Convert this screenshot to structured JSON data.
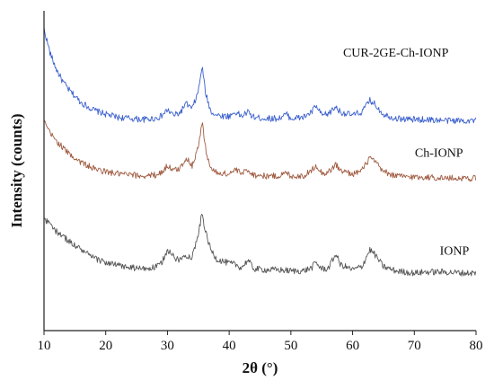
{
  "chart_data": {
    "type": "line",
    "xlabel": "2θ (°)",
    "ylabel": "Intensity (counts)",
    "xlim": [
      10,
      80
    ],
    "xticks": [
      10,
      20,
      30,
      40,
      50,
      60,
      70,
      80
    ],
    "ylim": [
      0,
      300
    ],
    "grid": false,
    "series": [
      {
        "name": "CUR-2GE-Ch-IONP",
        "color": "#3a5fcd",
        "label_at": [
          67,
          257
        ],
        "points": [
          [
            10,
            283
          ],
          [
            11,
            260
          ],
          [
            12,
            245
          ],
          [
            13,
            234
          ],
          [
            14,
            226
          ],
          [
            16,
            214
          ],
          [
            18,
            207
          ],
          [
            20,
            203
          ],
          [
            22,
            200
          ],
          [
            24,
            199
          ],
          [
            26,
            198
          ],
          [
            28,
            199
          ],
          [
            29,
            201
          ],
          [
            30,
            207
          ],
          [
            31,
            202
          ],
          [
            32,
            204
          ],
          [
            33,
            213
          ],
          [
            34,
            208
          ],
          [
            35,
            224
          ],
          [
            35.6,
            248
          ],
          [
            36.2,
            222
          ],
          [
            37,
            206
          ],
          [
            38,
            202
          ],
          [
            40,
            201
          ],
          [
            41,
            205
          ],
          [
            42,
            201
          ],
          [
            43,
            205
          ],
          [
            44,
            200
          ],
          [
            46,
            199
          ],
          [
            48,
            199
          ],
          [
            49.3,
            203
          ],
          [
            50,
            199
          ],
          [
            52,
            200
          ],
          [
            53.4,
            205
          ],
          [
            54,
            211
          ],
          [
            55,
            202
          ],
          [
            56,
            203
          ],
          [
            57.3,
            210
          ],
          [
            58,
            205
          ],
          [
            60,
            202
          ],
          [
            61.5,
            205
          ],
          [
            62.8,
            216
          ],
          [
            63.5,
            213
          ],
          [
            65,
            203
          ],
          [
            67,
            199
          ],
          [
            70,
            198
          ],
          [
            72,
            198
          ],
          [
            75,
            197
          ],
          [
            78,
            197
          ],
          [
            80,
            197
          ]
        ]
      },
      {
        "name": "Ch-IONP",
        "color": "#a05c42",
        "label_at": [
          74,
          163
        ],
        "points": [
          [
            10,
            196
          ],
          [
            11,
            185
          ],
          [
            12,
            178
          ],
          [
            13,
            172
          ],
          [
            14,
            166
          ],
          [
            16,
            158
          ],
          [
            18,
            152
          ],
          [
            20,
            149
          ],
          [
            22,
            147
          ],
          [
            24,
            146
          ],
          [
            26,
            145
          ],
          [
            28,
            146
          ],
          [
            29,
            148
          ],
          [
            30,
            155
          ],
          [
            31,
            150
          ],
          [
            32,
            152
          ],
          [
            33,
            162
          ],
          [
            34,
            155
          ],
          [
            35,
            172
          ],
          [
            35.6,
            196
          ],
          [
            36.2,
            170
          ],
          [
            37,
            152
          ],
          [
            38,
            148
          ],
          [
            40,
            147
          ],
          [
            41,
            151
          ],
          [
            42,
            147
          ],
          [
            43,
            151
          ],
          [
            44,
            146
          ],
          [
            46,
            145
          ],
          [
            48,
            145
          ],
          [
            49.3,
            148
          ],
          [
            50,
            145
          ],
          [
            52,
            145
          ],
          [
            53.4,
            150
          ],
          [
            54,
            156
          ],
          [
            55,
            148
          ],
          [
            56,
            148
          ],
          [
            57.3,
            156
          ],
          [
            58,
            150
          ],
          [
            60,
            147
          ],
          [
            61.5,
            150
          ],
          [
            62.8,
            162
          ],
          [
            63.5,
            159
          ],
          [
            65,
            149
          ],
          [
            67,
            145
          ],
          [
            70,
            144
          ],
          [
            72,
            144
          ],
          [
            75,
            143
          ],
          [
            78,
            143
          ],
          [
            80,
            143
          ]
        ]
      },
      {
        "name": "IONP",
        "color": "#555555",
        "label_at": [
          76.5,
          71
        ],
        "points": [
          [
            10,
            105
          ],
          [
            11,
            99
          ],
          [
            12,
            93
          ],
          [
            13,
            89
          ],
          [
            14,
            84
          ],
          [
            16,
            76
          ],
          [
            18,
            68
          ],
          [
            20,
            64
          ],
          [
            22,
            61
          ],
          [
            24,
            59
          ],
          [
            26,
            58
          ],
          [
            28,
            59
          ],
          [
            29,
            63
          ],
          [
            30,
            76
          ],
          [
            31,
            69
          ],
          [
            32,
            66
          ],
          [
            33,
            71
          ],
          [
            34,
            69
          ],
          [
            35,
            90
          ],
          [
            35.6,
            110
          ],
          [
            36.2,
            92
          ],
          [
            37,
            76
          ],
          [
            38,
            67
          ],
          [
            40,
            63
          ],
          [
            41,
            62
          ],
          [
            42,
            59
          ],
          [
            43,
            66
          ],
          [
            44,
            58
          ],
          [
            46,
            57
          ],
          [
            48,
            57
          ],
          [
            50,
            56
          ],
          [
            52,
            56
          ],
          [
            53.4,
            59
          ],
          [
            54,
            64
          ],
          [
            55,
            58
          ],
          [
            56,
            58
          ],
          [
            57.3,
            72
          ],
          [
            58,
            62
          ],
          [
            60,
            57
          ],
          [
            61.5,
            60
          ],
          [
            62.8,
            76
          ],
          [
            63.5,
            72
          ],
          [
            65,
            60
          ],
          [
            67,
            56
          ],
          [
            70,
            54
          ],
          [
            72,
            55
          ],
          [
            75,
            55
          ],
          [
            78,
            54
          ],
          [
            80,
            54
          ]
        ]
      }
    ]
  }
}
